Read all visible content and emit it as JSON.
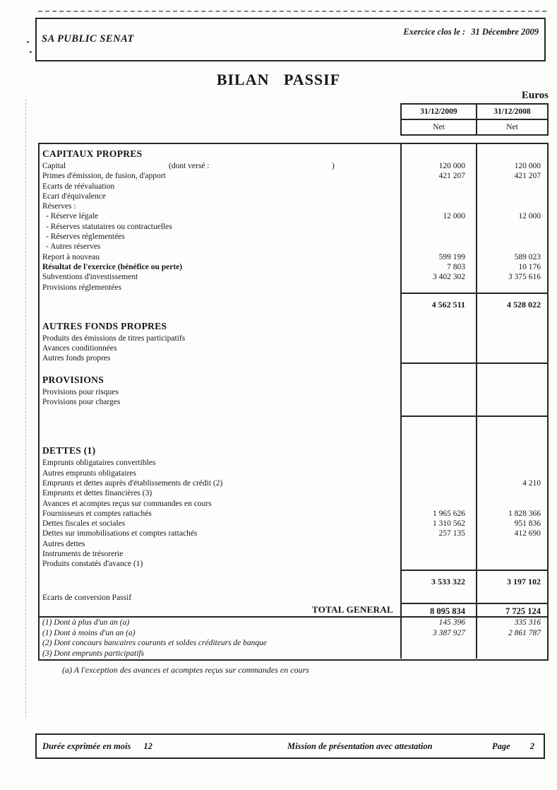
{
  "page_header": {
    "company": "SA PUBLIC SENAT",
    "exercise_label": "Exercice clos le :",
    "exercise_date": "31 Décembre 2009"
  },
  "title": "BILAN PASSIF",
  "currency": "Euros",
  "col_headers": {
    "y2009": "31/12/2009",
    "y2008": "31/12/2008",
    "net1": "Net",
    "net2": "Net"
  },
  "table": {
    "rows": [
      {
        "t": "gap-xs"
      },
      {
        "t": "section",
        "label": "CAPITAUX PROPRES"
      },
      {
        "t": "item",
        "label": "Capital",
        "paren_note": "(dont versé :",
        "paren_close": ")",
        "v": [
          "120 000",
          "120 000"
        ]
      },
      {
        "t": "item",
        "label": "Primes d'émission, de fusion, d'apport",
        "v": [
          "421 207",
          "421 207"
        ]
      },
      {
        "t": "item",
        "label": "Ecarts de réévaluation"
      },
      {
        "t": "item",
        "label": "Ecart d'équivalence"
      },
      {
        "t": "item",
        "label": "Réserves :"
      },
      {
        "t": "item",
        "indent": true,
        "label": "- Réserve légale",
        "v": [
          "12 000",
          "12 000"
        ]
      },
      {
        "t": "item",
        "indent": true,
        "label": "- Réserves statutaires ou contractuelles"
      },
      {
        "t": "item",
        "indent": true,
        "label": "- Réserves réglementées"
      },
      {
        "t": "item",
        "indent": true,
        "label": "- Autres réserves"
      },
      {
        "t": "item",
        "label": "Report à nouveau",
        "v": [
          "599 199",
          "589 023"
        ]
      },
      {
        "t": "item",
        "bold": true,
        "label": "Résultat de l'exercice (bénéfice ou perte)",
        "v": [
          "7 803",
          "10 176"
        ]
      },
      {
        "t": "item",
        "label": "Subventions d'investissement",
        "v": [
          "3 402 302",
          "3 375 616"
        ]
      },
      {
        "t": "item",
        "label": "Provisions réglementées"
      },
      {
        "t": "subtotal",
        "v": [
          "4 562 511",
          "4 528 022"
        ]
      },
      {
        "t": "gap-sm"
      },
      {
        "t": "section",
        "label": "AUTRES FONDS PROPRES"
      },
      {
        "t": "item",
        "label": "Produits des émissions de titres participatifs"
      },
      {
        "t": "item",
        "label": "Avances conditionnées"
      },
      {
        "t": "item",
        "rule": true,
        "label": "Autres fonds propres"
      },
      {
        "t": "gap-md"
      },
      {
        "t": "section",
        "label": "PROVISIONS"
      },
      {
        "t": "item",
        "label": "Provisions pour risques"
      },
      {
        "t": "item",
        "label": "Provisions pour charges"
      },
      {
        "t": "endline"
      },
      {
        "t": "gap-lg"
      },
      {
        "t": "section",
        "label": "DETTES (1)"
      },
      {
        "t": "item",
        "label": "Emprunts obligataires convertibles"
      },
      {
        "t": "item",
        "label": "Autres emprunts obligataires"
      },
      {
        "t": "item",
        "label": "Emprunts et dettes auprès d'établissements de crédit (2)",
        "v": [
          "",
          "4 210"
        ]
      },
      {
        "t": "item",
        "label": "Emprunts et dettes financières (3)"
      },
      {
        "t": "item",
        "label": "Avances et acomptes reçus sur commandes en cours"
      },
      {
        "t": "item",
        "label": "Fournisseurs et comptes rattachés",
        "v": [
          "1 965 626",
          "1 828 366"
        ]
      },
      {
        "t": "item",
        "label": "Dettes fiscales et sociales",
        "v": [
          "1 310 562",
          "951 836"
        ]
      },
      {
        "t": "item",
        "label": "Dettes sur immobilisations et comptes rattachés",
        "v": [
          "257 135",
          "412 690"
        ]
      },
      {
        "t": "item",
        "label": "Autres dettes"
      },
      {
        "t": "item",
        "label": "Instruments de trésorerie"
      },
      {
        "t": "item",
        "label": "Produits constatés d'avance (1)"
      },
      {
        "t": "subtotal",
        "v": [
          "3 533 322",
          "3 197 102"
        ]
      },
      {
        "t": "item",
        "label": "Ecarts de conversion Passif"
      },
      {
        "t": "totalgen",
        "label": "TOTAL GENERAL",
        "v": [
          "8 095 834",
          "7 725 124"
        ]
      },
      {
        "t": "foot",
        "label": "(1) Dont à plus d'un an (a)",
        "v": [
          "145 396",
          "335 316"
        ]
      },
      {
        "t": "foot",
        "label": "(1) Dont à moins d'un an (a)",
        "v": [
          "3 387 927",
          "2 861 787"
        ]
      },
      {
        "t": "foot",
        "label": "(2) Dont concours bancaires courants et soldes créditeurs de banque"
      },
      {
        "t": "foot",
        "label": "(3) Dont emprunts participatifs"
      }
    ]
  },
  "footnote_a": "(a) A l'exception des avances et acomptes reçus sur commandes en cours",
  "footer": {
    "duration_label": "Durée exprimée en mois",
    "duration_value": "12",
    "mission": "Mission de présentation avec attestation",
    "page_label": "Page",
    "page_number": "2"
  }
}
